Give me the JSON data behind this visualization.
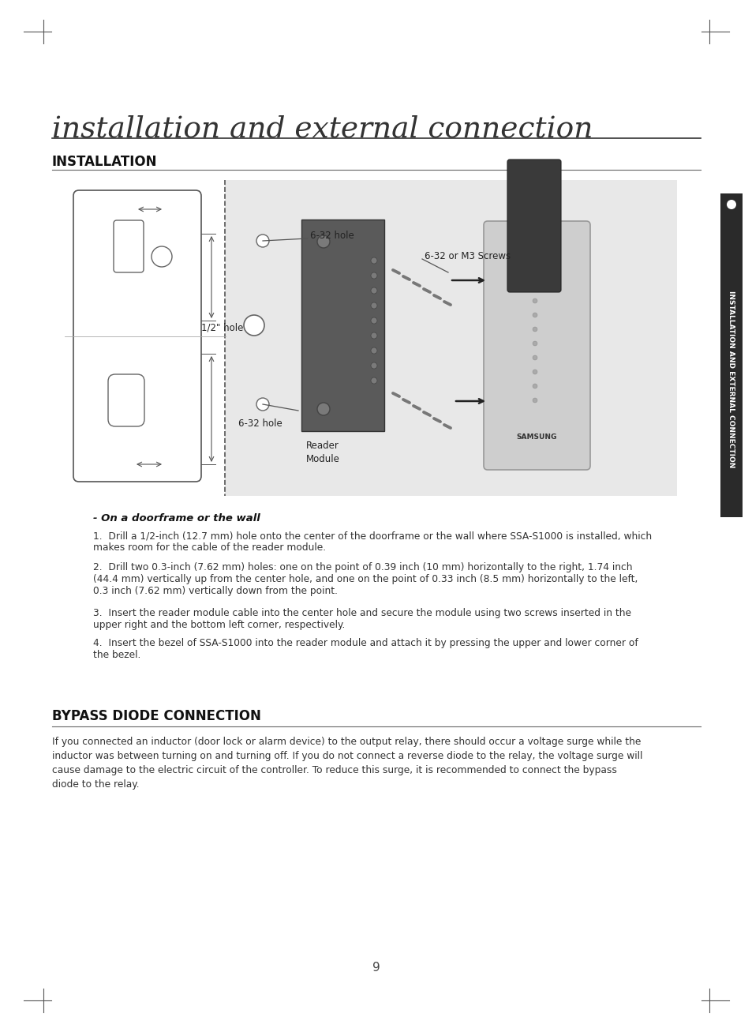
{
  "title": "installation and external connection",
  "section1_title": "INSTALLATION",
  "section2_title": "BYPASS DIODE CONNECTION",
  "on_doorframe": "- On a doorframe or the wall",
  "step1": "Drill a 1/2-inch (12.7 mm) hole onto the center of the doorframe or the wall where SSA-S1000 is installed, which\nmakes room for the cable of the reader module.",
  "step2": "Drill two 0.3-inch (7.62 mm) holes: one on the point of 0.39 inch (10 mm) horizontally to the right, 1.74 inch\n(44.4 mm) vertically up from the center hole, and one on the point of 0.33 inch (8.5 mm) horizontally to the left,\n0.3 inch (7.62 mm) vertically down from the point.",
  "step3": "Insert the reader module cable into the center hole and secure the module using two screws inserted in the\nupper right and the bottom left corner, respectively.",
  "step4": "Insert the bezel of SSA-S1000 into the reader module and attach it by pressing the upper and lower corner of\nthe bezel.",
  "bypass_text": "If you connected an inductor (door lock or alarm device) to the output relay, there should occur a voltage surge while the\ninductor was between turning on and turning off. If you do not connect a reverse diode to the relay, the voltage surge will\ncause damage to the electric circuit of the controller. To reduce this surge, it is recommended to connect the bypass\ndiode to the relay.",
  "page_number": "9",
  "label_6_32_hole_top": "6-32 hole",
  "label_6_32_or_m3": "6-32 or M3 Screws",
  "label_half_inch_hole": "1/2\" hole",
  "label_6_32_hole_bot": "6-32 hole",
  "label_reader_module": "Reader\nModule",
  "label_samsung": "SAMSUNG",
  "sidebar_text": "INSTALLATION AND EXTERNAL CONNECTION",
  "bg_color": "#ffffff",
  "diagram_bg": "#e8e8e8",
  "text_color": "#333333"
}
